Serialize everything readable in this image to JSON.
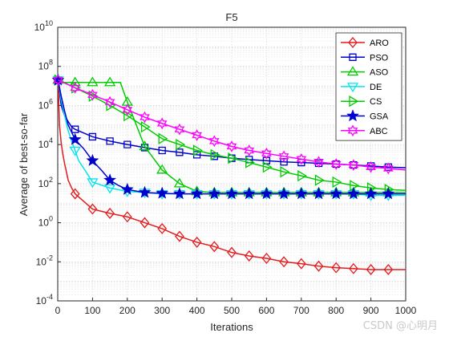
{
  "chart_data": {
    "type": "line",
    "title": "F5",
    "xlabel": "Iterations",
    "ylabel": "Average of best-so-far",
    "xlim": [
      0,
      1000
    ],
    "ylim_exp": [
      -4,
      10
    ],
    "y_scale": "log",
    "grid": true,
    "legend_position": "top-right",
    "x_ticks": [
      "0",
      "100",
      "200",
      "300",
      "400",
      "500",
      "600",
      "700",
      "800",
      "900",
      "1000"
    ],
    "y_ticks": [
      {
        "base": "10",
        "exp": "-4"
      },
      {
        "base": "10",
        "exp": "-2"
      },
      {
        "base": "10",
        "exp": "0"
      },
      {
        "base": "10",
        "exp": "2"
      },
      {
        "base": "10",
        "exp": "4"
      },
      {
        "base": "10",
        "exp": "6"
      },
      {
        "base": "10",
        "exp": "8"
      },
      {
        "base": "10",
        "exp": "10"
      }
    ],
    "series": [
      {
        "name": "ARO",
        "color": "#e41a1c",
        "marker": "diamond",
        "x": [
          1,
          5,
          10,
          15,
          20,
          25,
          30,
          40,
          50,
          100,
          150,
          200,
          250,
          300,
          350,
          400,
          450,
          500,
          550,
          600,
          650,
          700,
          750,
          800,
          850,
          900,
          950,
          1000
        ],
        "y": [
          20000000,
          100000,
          12000,
          3000,
          1000,
          400,
          150,
          60,
          30,
          5,
          3,
          2,
          1,
          0.5,
          0.2,
          0.1,
          0.06,
          0.03,
          0.02,
          0.015,
          0.01,
          0.008,
          0.006,
          0.005,
          0.0045,
          0.004,
          0.004,
          0.004
        ]
      },
      {
        "name": "PSO",
        "color": "#0000cd",
        "marker": "square",
        "x": [
          1,
          10,
          20,
          30,
          40,
          50,
          100,
          150,
          200,
          250,
          300,
          350,
          400,
          450,
          500,
          550,
          600,
          650,
          700,
          750,
          800,
          850,
          900,
          950,
          1000
        ],
        "y": [
          20000000,
          1000000,
          300000,
          150000,
          80000,
          60000,
          25000,
          15000,
          10000,
          7000,
          5000,
          4000,
          3000,
          2500,
          2000,
          1700,
          1500,
          1300,
          1200,
          1100,
          1000,
          900,
          800,
          700,
          650
        ]
      },
      {
        "name": "ASO",
        "color": "#00cc00",
        "marker": "triangle-up",
        "x": [
          1,
          20,
          50,
          100,
          150,
          180,
          200,
          250,
          300,
          350,
          400,
          450,
          500,
          550,
          600,
          650,
          700,
          750,
          800,
          850,
          900,
          950,
          1000
        ],
        "y": [
          20000000,
          15000000,
          15000000,
          15000000,
          15000000,
          15000000,
          1500000,
          8000,
          500,
          100,
          40,
          35,
          35,
          35,
          35,
          35,
          35,
          35,
          35,
          35,
          35,
          35,
          35
        ]
      },
      {
        "name": "DE",
        "color": "#00e5ee",
        "marker": "triangle-down",
        "x": [
          1,
          10,
          20,
          30,
          40,
          50,
          60,
          75,
          100,
          150,
          200,
          250,
          300,
          350,
          400,
          450,
          500,
          550,
          600,
          650,
          700,
          750,
          800,
          850,
          900,
          950,
          1000
        ],
        "y": [
          20000000,
          2000000,
          300000,
          50000,
          15000,
          5000,
          1500,
          600,
          120,
          60,
          40,
          35,
          30,
          30,
          30,
          30,
          30,
          30,
          30,
          30,
          30,
          30,
          30,
          30,
          25,
          25,
          25
        ]
      },
      {
        "name": "CS",
        "color": "#00cc00",
        "marker": "triangle-right",
        "x": [
          1,
          50,
          100,
          150,
          200,
          250,
          300,
          350,
          400,
          450,
          500,
          550,
          600,
          650,
          700,
          750,
          800,
          850,
          900,
          950,
          1000
        ],
        "y": [
          20000000,
          8000000,
          3000000,
          1000000,
          300000,
          80000,
          20000,
          10000,
          5000,
          3000,
          2000,
          1200,
          700,
          400,
          250,
          150,
          120,
          80,
          60,
          50,
          45
        ]
      },
      {
        "name": "GSA",
        "color": "#0000cd",
        "marker": "star",
        "x": [
          1,
          10,
          20,
          30,
          50,
          75,
          100,
          125,
          150,
          175,
          200,
          250,
          300,
          350,
          400,
          450,
          500,
          550,
          600,
          650,
          700,
          750,
          800,
          850,
          900,
          950,
          1000
        ],
        "y": [
          20000000,
          3000000,
          500000,
          100000,
          18000,
          6000,
          1500,
          500,
          150,
          80,
          50,
          35,
          32,
          30,
          30,
          30,
          30,
          30,
          30,
          30,
          30,
          30,
          30,
          30,
          30,
          30,
          30
        ]
      },
      {
        "name": "ABC",
        "color": "#ff00ff",
        "marker": "hexagram",
        "x": [
          1,
          50,
          100,
          150,
          200,
          250,
          300,
          350,
          400,
          450,
          500,
          550,
          600,
          650,
          700,
          750,
          800,
          850,
          900,
          950,
          1000
        ],
        "y": [
          20000000,
          8000000,
          3500000,
          1500000,
          600000,
          250000,
          120000,
          60000,
          30000,
          15000,
          8000,
          5000,
          3500,
          2500,
          1800,
          1300,
          1000,
          900,
          700,
          600,
          500
        ]
      }
    ]
  },
  "watermark": "CSDN @心明月"
}
